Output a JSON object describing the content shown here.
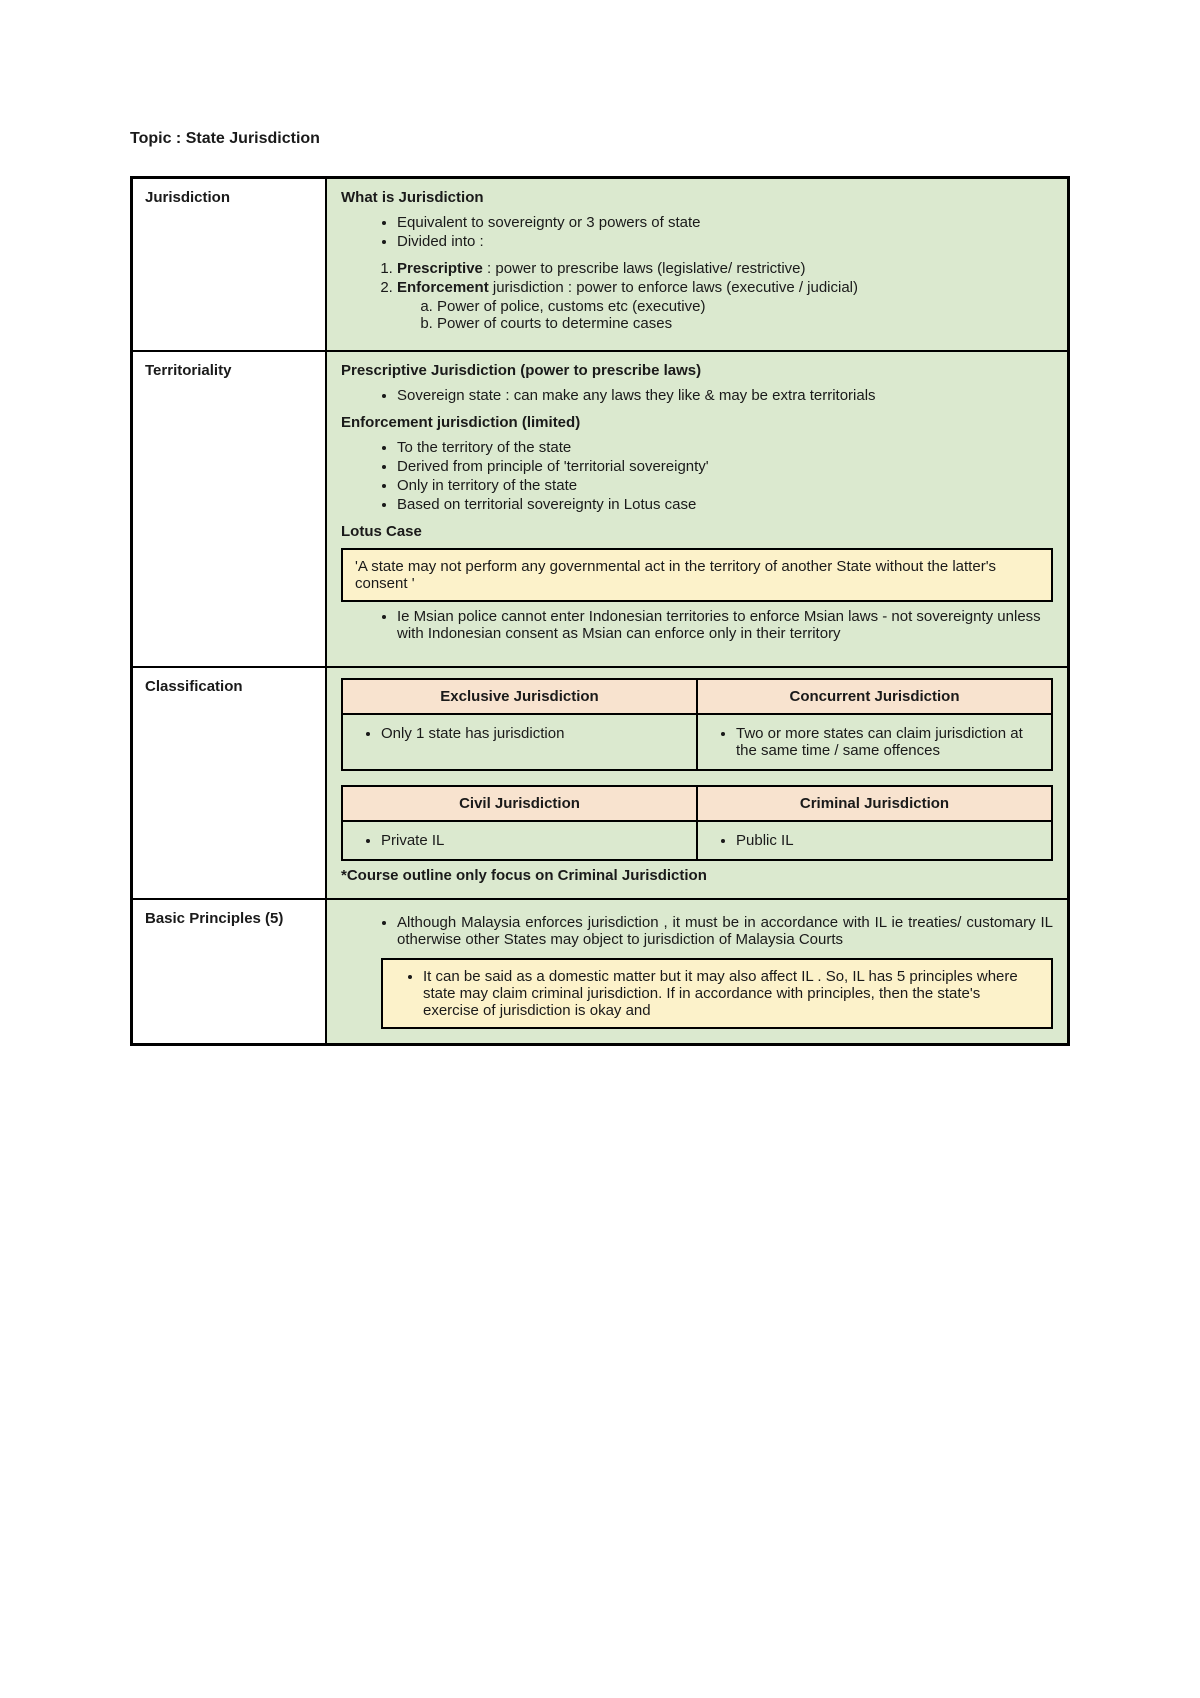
{
  "topic": "Topic : State Jurisdiction",
  "rows": {
    "jurisdiction": {
      "label": "Jurisdiction",
      "heading": "What is Jurisdiction",
      "b1": "Equivalent to sovereignty or 3 powers of state",
      "b2": "Divided into :",
      "n1_bold": "Prescriptive",
      "n1_rest": " : power to prescribe laws (legislative/ restrictive)",
      "n2_bold": "Enforcement",
      "n2_rest": " jurisdiction : power to enforce laws (executive / judicial)",
      "a": "Power of police, customs etc (executive)",
      "b": "Power of courts to determine cases"
    },
    "territoriality": {
      "label": "Territoriality",
      "h1": "Prescriptive Jurisdiction (power to prescribe laws)",
      "h1_b1": "Sovereign state : can make any laws they like & may be extra territorials",
      "h2": "Enforcement jurisdiction (limited)",
      "h2_b1": "To the territory of the state",
      "h2_b2": "Derived from principle of 'territorial sovereignty'",
      "h2_b3": "Only in territory of the state",
      "h2_b4": "Based on territorial sovereignty in Lotus case",
      "h3": "Lotus Case",
      "quote": "'A state may not perform any governmental act in the territory of another State without the latter's consent '",
      "after_b1": "Ie Msian police cannot enter Indonesian territories to enforce Msian laws - not sovereignty unless with Indonesian consent as Msian can enforce only in their territory"
    },
    "classification": {
      "label": "Classification",
      "t1h1": "Exclusive Jurisdiction",
      "t1h2": "Concurrent Jurisdiction",
      "t1c1": "Only 1 state has jurisdiction",
      "t1c2": "Two or more states can claim jurisdiction at the same time / same offences",
      "t2h1": "Civil Jurisdiction",
      "t2h2": "Criminal Jurisdiction",
      "t2c1": "Private IL",
      "t2c2": "Public IL",
      "note": "*Course outline only focus on Criminal Jurisdiction"
    },
    "principles": {
      "label": "Basic Principles (5)",
      "b1": "Although Malaysia enforces jurisdiction , it must be in accordance with IL ie treaties/ customary IL otherwise other States may object to jurisdiction of Malaysia Courts",
      "q1": "It can be said as a domestic matter but it may also affect IL . So, IL has 5 principles where state may claim criminal jurisdiction. If in accordance with principles, then the state's exercise of jurisdiction is okay and"
    }
  }
}
